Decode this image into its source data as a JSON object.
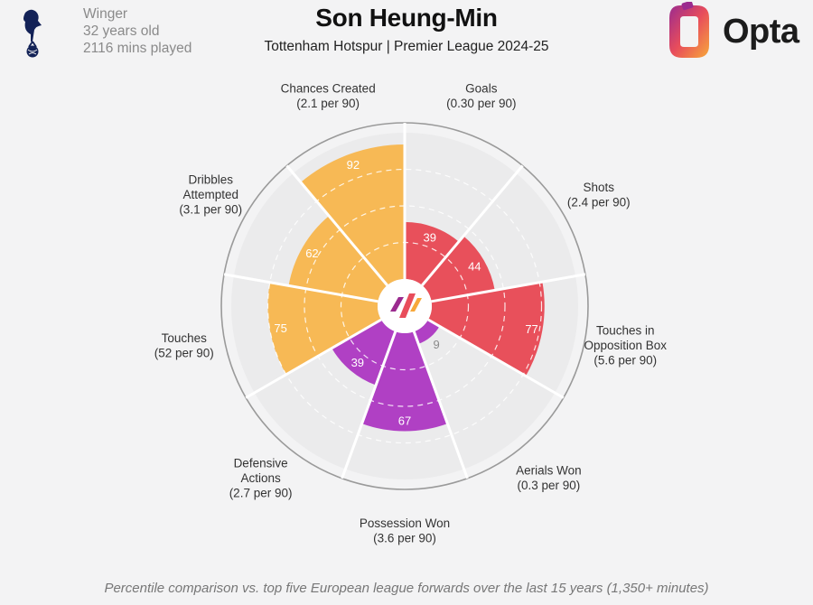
{
  "player": {
    "name": "Son Heung-Min",
    "subtitle": "Tottenham Hotspur | Premier League 2024-25",
    "position": "Winger",
    "age": "32 years old",
    "minutes": "2116 mins played"
  },
  "brand": {
    "name": "Opta"
  },
  "footnote": "Percentile comparison vs. top five European league forwards over the last 15 years (1,350+ minutes)",
  "colors": {
    "attacking": "#e8505b",
    "possession": "#f7b955",
    "defending": "#b040c4",
    "background": "#f3f3f4",
    "slice_background": "#ebebec",
    "grid": "#ffffff"
  },
  "chart_data": {
    "type": "polar_bar",
    "scale": [
      0,
      100
    ],
    "series": [
      {
        "label_lines": [
          "Goals",
          "(0.30 per 90)"
        ],
        "value": 39,
        "group": "attacking"
      },
      {
        "label_lines": [
          "Shots",
          "(2.4 per 90)"
        ],
        "value": 44,
        "group": "attacking"
      },
      {
        "label_lines": [
          "Touches in",
          "Opposition Box",
          "(5.6 per 90)"
        ],
        "value": 77,
        "group": "attacking"
      },
      {
        "label_lines": [
          "Aerials Won",
          "(0.3 per 90)"
        ],
        "value": 9,
        "group": "defending"
      },
      {
        "label_lines": [
          "Possession Won",
          "(3.6 per 90)"
        ],
        "value": 67,
        "group": "defending"
      },
      {
        "label_lines": [
          "Defensive",
          "Actions",
          "(2.7 per 90)"
        ],
        "value": 39,
        "group": "defending"
      },
      {
        "label_lines": [
          "Touches",
          "(52 per 90)"
        ],
        "value": 75,
        "group": "possession"
      },
      {
        "label_lines": [
          "Dribbles",
          "Attempted",
          "(3.1 per 90)"
        ],
        "value": 62,
        "group": "possession"
      },
      {
        "label_lines": [
          "Chances Created",
          "(2.1 per 90)"
        ],
        "value": 92,
        "group": "possession"
      }
    ]
  }
}
